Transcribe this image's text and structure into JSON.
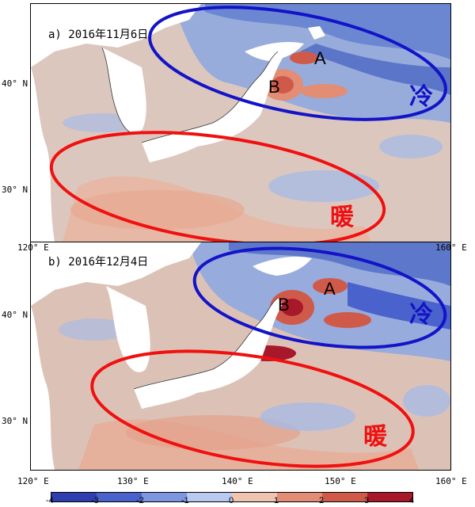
{
  "panels": {
    "a": {
      "title": "a) 2016年11月6日",
      "cold_label": "冷",
      "warm_label": "暖",
      "marker_a": "A",
      "marker_b": "B"
    },
    "b": {
      "title": "b) 2016年12月4日",
      "cold_label": "冷",
      "warm_label": "暖",
      "marker_a": "A",
      "marker_b": "B"
    }
  },
  "axes": {
    "lat_labels": [
      "40° N",
      "30° N"
    ],
    "lon_labels": [
      "120° E",
      "130° E",
      "140° E",
      "150° E",
      "160° E"
    ]
  },
  "colorbar": {
    "ticks": [
      "-4",
      "-3",
      "-2",
      "-1",
      "0",
      "1",
      "2",
      "3",
      "4"
    ],
    "colors": [
      "#2f3fb0",
      "#4a62cc",
      "#7d96df",
      "#b9c9ef",
      "#ede5e2",
      "#f0c4b0",
      "#e28d74",
      "#cf5a4a",
      "#a8182b"
    ]
  },
  "colors": {
    "cold_ellipse": "#1313c8",
    "warm_ellipse": "#f01010",
    "land": "#ffffff",
    "sea_base": "#dec8c0"
  }
}
